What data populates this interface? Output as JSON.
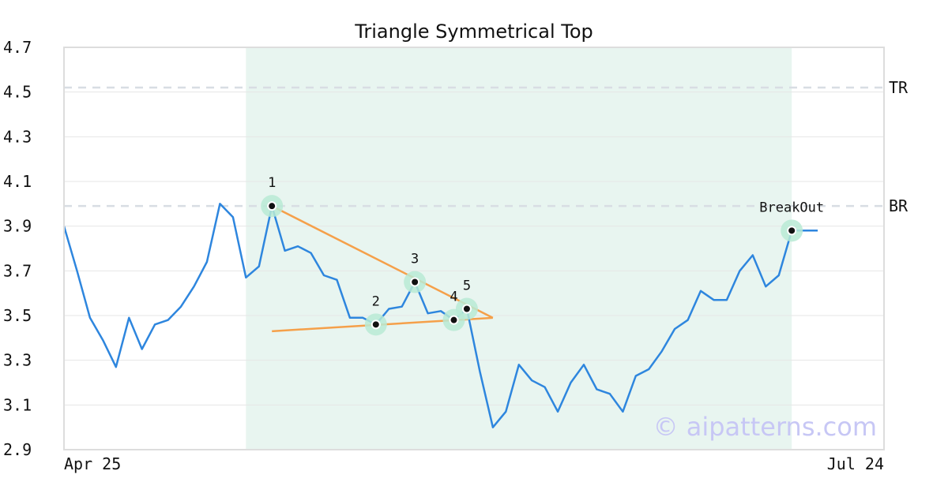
{
  "chart_data": {
    "type": "line",
    "title": "Triangle Symmetrical Top",
    "xlabel": "",
    "ylabel": "",
    "ylim": [
      2.9,
      4.7
    ],
    "y_ticks": [
      "4.7",
      "4.5",
      "4.3",
      "4.1",
      "3.9",
      "3.7",
      "3.5",
      "3.3",
      "3.1",
      "2.9"
    ],
    "x_tick_labels": [
      "Apr 25",
      "Jul 24"
    ],
    "grid": true,
    "series": [
      {
        "color": "#2e86de",
        "values": [
          3.9,
          3.7,
          3.49,
          3.39,
          3.27,
          3.49,
          3.35,
          3.46,
          3.48,
          3.54,
          3.63,
          3.74,
          4.0,
          3.94,
          3.67,
          3.72,
          3.99,
          3.79,
          3.81,
          3.78,
          3.68,
          3.66,
          3.49,
          3.49,
          3.46,
          3.53,
          3.54,
          3.65,
          3.51,
          3.52,
          3.48,
          3.53,
          3.25,
          3.0,
          3.07,
          3.28,
          3.21,
          3.18,
          3.07,
          3.2,
          3.28,
          3.17,
          3.15,
          3.07,
          3.23,
          3.26,
          3.34,
          3.44,
          3.48,
          3.61,
          3.57,
          3.57,
          3.7,
          3.77,
          3.63,
          3.68,
          3.88,
          3.88,
          3.88
        ]
      }
    ],
    "shaded_region": {
      "start_index": 14,
      "end_index": 56,
      "color": "#e8f5f0"
    },
    "horizontal_lines": [
      {
        "label": "TR",
        "value": 4.52,
        "color": "#d8dde3"
      },
      {
        "label": "BR",
        "value": 3.99,
        "color": "#d8dde3"
      }
    ],
    "trendlines": [
      {
        "color": "#f5a04a",
        "points": [
          [
            16,
            3.99
          ],
          [
            33,
            3.49
          ]
        ]
      },
      {
        "color": "#f5a04a",
        "points": [
          [
            16,
            3.43
          ],
          [
            33,
            3.49
          ]
        ]
      }
    ],
    "pattern_points": [
      {
        "label": "1",
        "index": 16,
        "value": 3.99
      },
      {
        "label": "2",
        "index": 24,
        "value": 3.46
      },
      {
        "label": "3",
        "index": 27,
        "value": 3.65
      },
      {
        "label": "4",
        "index": 30,
        "value": 3.48
      },
      {
        "label": "5",
        "index": 31,
        "value": 3.53
      },
      {
        "label": "BreakOut",
        "index": 56,
        "value": 3.88
      }
    ],
    "watermark": "© aipatterns.com"
  }
}
